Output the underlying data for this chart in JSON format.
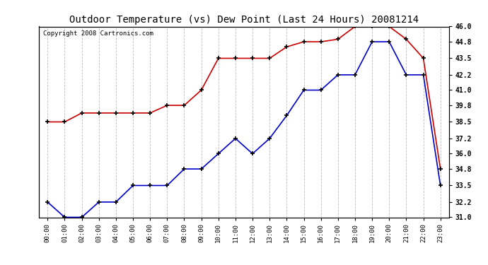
{
  "title": "Outdoor Temperature (vs) Dew Point (Last 24 Hours) 20081214",
  "copyright": "Copyright 2008 Cartronics.com",
  "hours": [
    "00:00",
    "01:00",
    "02:00",
    "03:00",
    "04:00",
    "05:00",
    "06:00",
    "07:00",
    "08:00",
    "09:00",
    "10:00",
    "11:00",
    "12:00",
    "13:00",
    "14:00",
    "15:00",
    "16:00",
    "17:00",
    "18:00",
    "19:00",
    "20:00",
    "21:00",
    "22:00",
    "23:00"
  ],
  "temp": [
    32.2,
    31.0,
    31.0,
    32.2,
    32.2,
    33.5,
    33.5,
    33.5,
    34.8,
    34.8,
    36.0,
    37.2,
    36.0,
    37.2,
    39.0,
    41.0,
    41.0,
    42.2,
    42.2,
    44.8,
    44.8,
    42.2,
    42.2,
    33.5
  ],
  "dew": [
    38.5,
    38.5,
    39.2,
    39.2,
    39.2,
    39.2,
    39.2,
    39.8,
    39.8,
    41.0,
    43.5,
    43.5,
    43.5,
    43.5,
    44.4,
    44.8,
    44.8,
    45.0,
    46.0,
    46.0,
    46.0,
    45.0,
    43.5,
    34.8
  ],
  "ylim": [
    31.0,
    46.0
  ],
  "yticks": [
    31.0,
    32.2,
    33.5,
    34.8,
    36.0,
    37.2,
    38.5,
    39.8,
    41.0,
    42.2,
    43.5,
    44.8,
    46.0
  ],
  "temp_color": "#0000cc",
  "dew_color": "#cc0000",
  "bg_color": "#ffffff",
  "grid_color": "#bbbbbb",
  "title_color": "#000000",
  "title_fontsize": 10,
  "copyright_fontsize": 6.5
}
